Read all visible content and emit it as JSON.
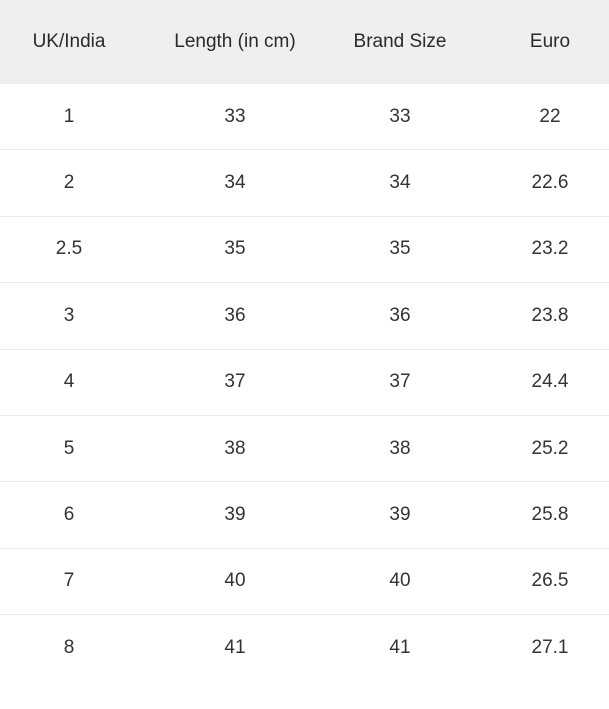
{
  "table": {
    "headers": [
      "UK/India",
      "Length (in cm)",
      "Brand Size",
      "Euro"
    ],
    "rows": [
      [
        "1",
        "33",
        "33",
        "22"
      ],
      [
        "2",
        "34",
        "34",
        "22.6"
      ],
      [
        "2.5",
        "35",
        "35",
        "23.2"
      ],
      [
        "3",
        "36",
        "36",
        "23.8"
      ],
      [
        "4",
        "37",
        "37",
        "24.4"
      ],
      [
        "5",
        "38",
        "38",
        "25.2"
      ],
      [
        "6",
        "39",
        "39",
        "25.8"
      ],
      [
        "7",
        "40",
        "40",
        "26.5"
      ],
      [
        "8",
        "41",
        "41",
        "27.1"
      ]
    ]
  },
  "colors": {
    "header_bg": "#efefef",
    "text": "#333333",
    "divider": "#ececec"
  }
}
